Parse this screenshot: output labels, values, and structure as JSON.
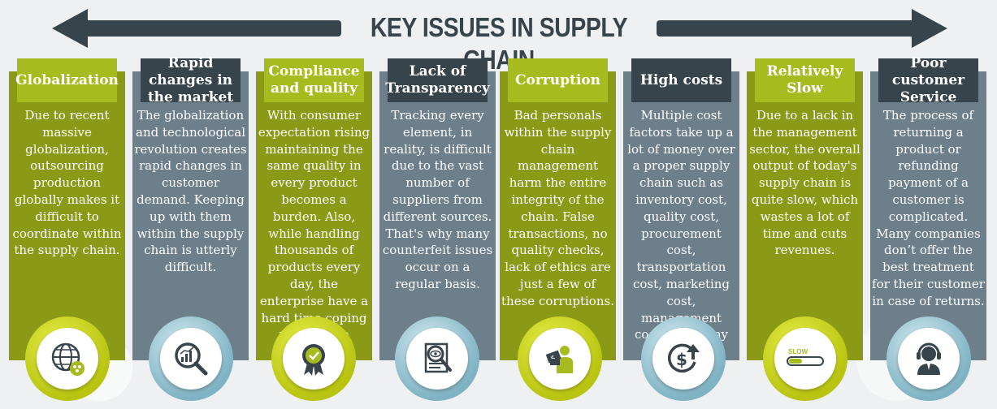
{
  "title": "KEY ISSUES IN SUPPLY CHAIN",
  "colors": {
    "green": "#8b9a16",
    "green_header": "#a6bb1d",
    "gray": "#6d7f8a",
    "dark": "#37444c"
  },
  "columns": [
    {
      "heading": "Globalization",
      "text": "Due to recent massive globalization, outsourcing production globally makes it difficult to coordinate within the supply chain.",
      "icon": "globe-network-icon"
    },
    {
      "heading": "Rapid changes in the market",
      "text": "The globalization and technological revolution creates rapid changes in customer demand. Keeping up with them within the supply chain is utterly difficult.",
      "icon": "magnifier-chart-icon"
    },
    {
      "heading": "Compliance and quality",
      "text": "With consumer expectation rising maintaining the same quality in every product becomes a burden. Also, while handling thousands of products every day, the enterprise have a hard time coping with all the regulations.",
      "icon": "quality-badge-icon"
    },
    {
      "heading": "Lack of Transparency",
      "text": "Tracking every element, in reality, is difficult due to the vast number of suppliers from different sources. That's why many counterfeit issues occur on a regular basis.",
      "icon": "document-eye-icon"
    },
    {
      "heading": "Corruption",
      "text": "Bad personals within the supply chain management harm the entire integrity of the chain. False transactions, no quality checks, lack of ethics are just a few of these corruptions.",
      "icon": "bribe-person-icon"
    },
    {
      "heading": "High costs",
      "text": "Multiple cost factors take up a lot of money over a proper supply chain such as inventory cost, quality cost, procurement cost, transportation cost, marketing cost, management cost, and many more.",
      "icon": "dollar-up-icon"
    },
    {
      "heading": "Relatively Slow",
      "text": "Due to a lack in the management sector, the overall output of today's supply chain is quite slow, which wastes a lot of time and cuts revenues.",
      "icon": "slow-bar-icon",
      "badge": "SLOW"
    },
    {
      "heading": "Poor customer Service",
      "text": "The process of returning a product or refunding payment of a customer is complicated. Many companies don’t offer the best treatment for their customer in case of returns.",
      "icon": "support-agent-icon"
    }
  ]
}
